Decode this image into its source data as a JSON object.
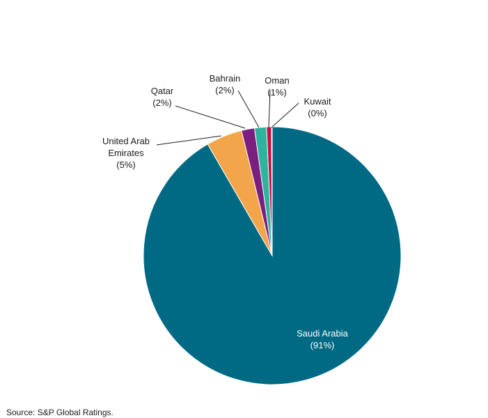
{
  "chart_data": {
    "type": "pie",
    "slices": [
      {
        "name": "Saudi Arabia",
        "value": 91,
        "pct_label": "(91%)",
        "color": "#006a84",
        "label_lines": [
          "Saudi Arabia"
        ]
      },
      {
        "name": "United Arab Emirates",
        "value": 5,
        "pct_label": "(5%)",
        "color": "#f2a54a",
        "label_lines": [
          "United Arab",
          "Emirates"
        ]
      },
      {
        "name": "Qatar",
        "value": 2,
        "pct_label": "(2%)",
        "color": "#7a1f7f",
        "label_lines": [
          "Qatar"
        ]
      },
      {
        "name": "Bahrain",
        "value": 2,
        "pct_label": "(2%)",
        "color": "#2db39e",
        "label_lines": [
          "Bahrain"
        ]
      },
      {
        "name": "Oman",
        "value": 1,
        "pct_label": "(1%)",
        "color": "#c4123f",
        "label_lines": [
          "Oman"
        ]
      },
      {
        "name": "Kuwait",
        "value": 0,
        "pct_label": "(0%)",
        "color": "#a0a6c8",
        "label_lines": [
          "Kuwait"
        ]
      }
    ]
  },
  "source_text": "Source: S&P Global Ratings."
}
